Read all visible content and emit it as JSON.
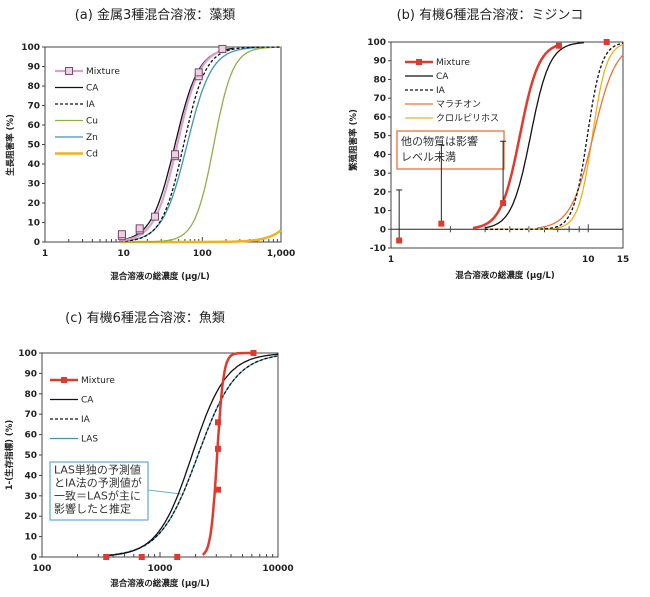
{
  "chart_data": [
    {
      "type": "line",
      "id": "a",
      "title": "(a) 金属3種混合溶液：藻類",
      "xlabel": "混合溶液の総濃度 (μg/L)",
      "ylabel": "生長阻害率 (%)",
      "xscale": "log",
      "xlim": [
        1,
        1000
      ],
      "ylim": [
        0,
        100
      ],
      "xticks": [
        1,
        10,
        100,
        1000
      ],
      "xtick_labels": [
        "1",
        "10",
        "100",
        "1,000"
      ],
      "yticks": [
        0,
        10,
        20,
        30,
        40,
        50,
        60,
        70,
        80,
        90,
        100
      ],
      "legend_position": "top-left",
      "series": [
        {
          "name": "Mixture",
          "color": "#d9a0cc",
          "marker": "square",
          "ec50": 48,
          "hill": 3.0,
          "range": [
            9,
            200
          ],
          "points": [
            [
              9.5,
              3
            ],
            [
              9.5,
              4
            ],
            [
              16,
              6
            ],
            [
              16,
              7
            ],
            [
              25,
              13
            ],
            [
              45,
              44
            ],
            [
              45,
              45
            ],
            [
              90,
              85
            ],
            [
              90,
              87
            ],
            [
              180,
              99
            ]
          ]
        },
        {
          "name": "CA",
          "color": "#111111",
          "ec50": 45,
          "hill": 2.9,
          "range": [
            9,
            250
          ]
        },
        {
          "name": "IA",
          "color": "#111111",
          "dash": true,
          "ec50": 58,
          "hill": 3.1,
          "range": [
            9,
            1000
          ]
        },
        {
          "name": "Cu",
          "color": "#8fb04a",
          "ec50": 140,
          "hill": 3.6,
          "range": [
            9,
            1000
          ]
        },
        {
          "name": "Zn",
          "color": "#3f95b8",
          "ec50": 64,
          "hill": 2.8,
          "range": [
            9,
            1000
          ]
        },
        {
          "name": "Cd",
          "color": "#f0b020",
          "thick": true,
          "ec50": 3000,
          "hill": 2.5,
          "range": [
            9,
            1000
          ]
        }
      ]
    },
    {
      "type": "line",
      "id": "b",
      "title": "(b) 有機6種混合溶液：ミジンコ",
      "xlabel": "混合溶液の総濃度 (μg/L)",
      "ylabel": "繁殖阻害率 (%)",
      "xscale": "log",
      "xlim": [
        1,
        15
      ],
      "ylim": [
        -10,
        100
      ],
      "xticks": [
        1,
        10,
        15
      ],
      "xtick_labels": [
        "1",
        "10",
        "15"
      ],
      "yticks": [
        -10,
        0,
        10,
        20,
        30,
        40,
        50,
        60,
        70,
        80,
        90,
        100
      ],
      "legend_position": "top-left",
      "annotation": [
        "他の物質は影響",
        "レベル未満"
      ],
      "series": [
        {
          "name": "Mixture",
          "color": "#e03a2f",
          "marker": "square",
          "thick": true,
          "ec50": 4.5,
          "hill": 9,
          "range": [
            2.6,
            7.3
          ],
          "points": [
            [
              1.1,
              -6
            ],
            [
              1.8,
              3
            ],
            [
              3.7,
              14
            ],
            [
              7.1,
              98
            ],
            [
              12.4,
              100
            ]
          ],
          "error_bars": [
            [
              1.1,
              -6,
              21
            ],
            [
              1.8,
              3,
              45
            ],
            [
              3.7,
              14,
              47
            ]
          ]
        },
        {
          "name": "CA",
          "color": "#111111",
          "ec50": 5.1,
          "hill": 9,
          "range": [
            3.0,
            9.5
          ]
        },
        {
          "name": "IA",
          "color": "#111111",
          "dash": true,
          "ec50": 9.9,
          "hill": 12,
          "range": [
            3.0,
            15
          ]
        },
        {
          "name": "マラチオン",
          "color": "#e8743a",
          "ec50": 10.6,
          "hill": 7.5,
          "range": [
            5.5,
            15
          ]
        },
        {
          "name": "クロルピリホス",
          "color": "#f0b020",
          "ec50": 10.5,
          "hill": 12,
          "range": [
            3.0,
            15
          ]
        }
      ]
    },
    {
      "type": "line",
      "id": "c",
      "title": "(c) 有機6種混合溶液：魚類",
      "xlabel": "混合溶液の総濃度 (μg/L)",
      "ylabel": "1-(生存指標) (%)",
      "xscale": "log",
      "xlim": [
        100,
        10000
      ],
      "ylim": [
        0,
        100
      ],
      "xticks": [
        100,
        1000,
        10000
      ],
      "xtick_labels": [
        "100",
        "1000",
        "10000"
      ],
      "yticks": [
        0,
        10,
        20,
        30,
        40,
        50,
        60,
        70,
        80,
        90,
        100
      ],
      "legend_position": "top-left",
      "annotation": [
        "LAS単独の予測値",
        "とIA法の予測値が",
        "一致＝LASが主に",
        "影響したと推定"
      ],
      "series": [
        {
          "name": "Mixture",
          "color": "#e03a2f",
          "marker": "square",
          "thick": true,
          "ec50": 3050,
          "hill": 16,
          "range": [
            2300,
            6000
          ],
          "points": [
            [
              350,
              0
            ],
            [
              700,
              0
            ],
            [
              1400,
              0
            ],
            [
              3100,
              33
            ],
            [
              3100,
              53
            ],
            [
              3100,
              66
            ],
            [
              6200,
              100
            ]
          ]
        },
        {
          "name": "CA",
          "color": "#111111",
          "ec50": 1870,
          "hill": 3.0,
          "range": [
            340,
            10000
          ]
        },
        {
          "name": "IA",
          "color": "#111111",
          "dash": true,
          "ec50": 2100,
          "hill": 2.7,
          "range": [
            340,
            10000
          ]
        },
        {
          "name": "LAS",
          "color": "#3f95b8",
          "ec50": 2100,
          "hill": 2.7,
          "range": [
            340,
            10000
          ]
        }
      ]
    }
  ]
}
